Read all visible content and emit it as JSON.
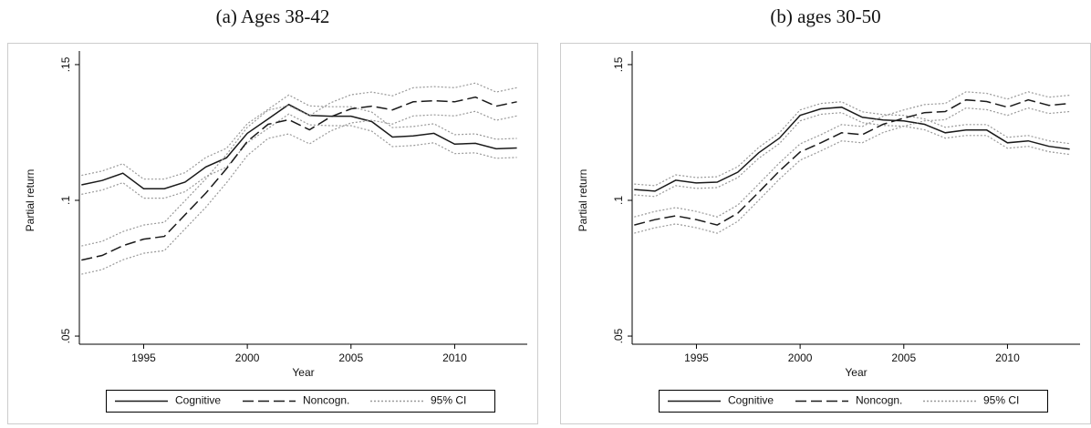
{
  "chart_data": [
    {
      "type": "line",
      "title": "(a) Ages 38-42",
      "xlabel": "Year",
      "ylabel": "Partial return",
      "x": [
        1992,
        1993,
        1994,
        1995,
        1996,
        1997,
        1998,
        1999,
        2000,
        2001,
        2002,
        2003,
        2004,
        2005,
        2006,
        2007,
        2008,
        2009,
        2010,
        2011,
        2012,
        2013
      ],
      "xlim": [
        1991.9,
        2013.5
      ],
      "xticks": [
        1995,
        2000,
        2005,
        2010
      ],
      "ylim": [
        0.047,
        0.153
      ],
      "yticks": [
        {
          "value": 0.05,
          "label": ".05"
        },
        {
          "value": 0.1,
          "label": ".1"
        },
        {
          "value": 0.15,
          "label": ".15"
        }
      ],
      "ci_label": "95% CI",
      "ci_color": "#999999",
      "series": [
        {
          "name": "Cognitive",
          "color": "#1a1a1a",
          "dash": "solid",
          "values": [
            0.1057,
            0.1073,
            0.11,
            0.1043,
            0.1043,
            0.1067,
            0.1123,
            0.1157,
            0.1247,
            0.13,
            0.1353,
            0.1313,
            0.131,
            0.131,
            0.129,
            0.1233,
            0.1237,
            0.1247,
            0.1207,
            0.121,
            0.119,
            0.1193
          ],
          "ci_upper": [
            0.1092,
            0.1108,
            0.1135,
            0.1078,
            0.1078,
            0.1102,
            0.1158,
            0.1192,
            0.1282,
            0.1335,
            0.1388,
            0.1348,
            0.1345,
            0.1345,
            0.1325,
            0.1268,
            0.1272,
            0.1282,
            0.1242,
            0.1245,
            0.1225,
            0.1228
          ],
          "ci_lower": [
            0.1022,
            0.1038,
            0.1065,
            0.1008,
            0.1008,
            0.1032,
            0.1088,
            0.1122,
            0.1212,
            0.1265,
            0.1318,
            0.1278,
            0.1275,
            0.1275,
            0.1255,
            0.1198,
            0.1202,
            0.1212,
            0.1172,
            0.1175,
            0.1155,
            0.1158
          ]
        },
        {
          "name": "Noncogn.",
          "color": "#1a1a1a",
          "dash": "dashed",
          "values": [
            0.078,
            0.0797,
            0.0833,
            0.0857,
            0.0867,
            0.0947,
            0.1027,
            0.1117,
            0.1217,
            0.128,
            0.1297,
            0.126,
            0.1307,
            0.1337,
            0.1347,
            0.1333,
            0.1363,
            0.1367,
            0.1363,
            0.138,
            0.1347,
            0.1363
          ],
          "ci_upper": [
            0.0832,
            0.0849,
            0.0885,
            0.0909,
            0.0919,
            0.0999,
            0.1079,
            0.1169,
            0.1269,
            0.1332,
            0.1349,
            0.1312,
            0.1359,
            0.1389,
            0.1399,
            0.1385,
            0.1415,
            0.1419,
            0.1415,
            0.1432,
            0.1399,
            0.1415
          ],
          "ci_lower": [
            0.0728,
            0.0745,
            0.0781,
            0.0805,
            0.0815,
            0.0895,
            0.0975,
            0.1065,
            0.1165,
            0.1228,
            0.1245,
            0.1208,
            0.1255,
            0.1285,
            0.1295,
            0.1281,
            0.1311,
            0.1315,
            0.1311,
            0.1328,
            0.1295,
            0.1311
          ]
        }
      ]
    },
    {
      "type": "line",
      "title": "(b) ages 30-50",
      "xlabel": "Year",
      "ylabel": "Partial return",
      "x": [
        1992,
        1993,
        1994,
        1995,
        1996,
        1997,
        1998,
        1999,
        2000,
        2001,
        2002,
        2003,
        2004,
        2005,
        2006,
        2007,
        2008,
        2009,
        2010,
        2011,
        2012,
        2013
      ],
      "xlim": [
        1991.9,
        2013.5
      ],
      "xticks": [
        1995,
        2000,
        2005,
        2010
      ],
      "ylim": [
        0.047,
        0.153
      ],
      "yticks": [
        {
          "value": 0.05,
          "label": ".05"
        },
        {
          "value": 0.1,
          "label": ".1"
        },
        {
          "value": 0.15,
          "label": ".15"
        }
      ],
      "ci_label": "95% CI",
      "ci_color": "#999999",
      "series": [
        {
          "name": "Cognitive",
          "color": "#1a1a1a",
          "dash": "solid",
          "values": [
            0.104,
            0.1034,
            0.1074,
            0.1064,
            0.1067,
            0.1104,
            0.1175,
            0.1229,
            0.1313,
            0.1337,
            0.1343,
            0.1306,
            0.1296,
            0.1293,
            0.128,
            0.1249,
            0.1259,
            0.1259,
            0.1212,
            0.1219,
            0.1199,
            0.1189
          ],
          "ci_upper": [
            0.106,
            0.1054,
            0.1094,
            0.1084,
            0.1087,
            0.1124,
            0.1195,
            0.1249,
            0.1333,
            0.1357,
            0.1363,
            0.1326,
            0.1316,
            0.1313,
            0.13,
            0.1269,
            0.1279,
            0.1279,
            0.1232,
            0.1239,
            0.1219,
            0.1209
          ],
          "ci_lower": [
            0.102,
            0.1014,
            0.1054,
            0.1044,
            0.1047,
            0.1084,
            0.1155,
            0.1209,
            0.1293,
            0.1317,
            0.1323,
            0.1286,
            0.1276,
            0.1273,
            0.126,
            0.1229,
            0.1239,
            0.1239,
            0.1192,
            0.1199,
            0.1179,
            0.1169
          ]
        },
        {
          "name": "Noncogn.",
          "color": "#1a1a1a",
          "dash": "dashed",
          "values": [
            0.0909,
            0.0929,
            0.0943,
            0.0929,
            0.0909,
            0.0953,
            0.103,
            0.1108,
            0.1178,
            0.1212,
            0.1249,
            0.1242,
            0.128,
            0.1303,
            0.1323,
            0.1327,
            0.137,
            0.1364,
            0.1343,
            0.137,
            0.135,
            0.1357
          ],
          "ci_upper": [
            0.0939,
            0.0959,
            0.0973,
            0.0959,
            0.0939,
            0.0983,
            0.106,
            0.1138,
            0.1208,
            0.1242,
            0.1279,
            0.1272,
            0.131,
            0.1333,
            0.1353,
            0.1357,
            0.14,
            0.1394,
            0.1373,
            0.14,
            0.138,
            0.1387
          ],
          "ci_lower": [
            0.0879,
            0.0899,
            0.0913,
            0.0899,
            0.0879,
            0.0923,
            0.1,
            0.1078,
            0.1148,
            0.1182,
            0.1219,
            0.1212,
            0.125,
            0.1273,
            0.1293,
            0.1297,
            0.134,
            0.1334,
            0.1313,
            0.134,
            0.132,
            0.1327
          ]
        }
      ]
    }
  ]
}
